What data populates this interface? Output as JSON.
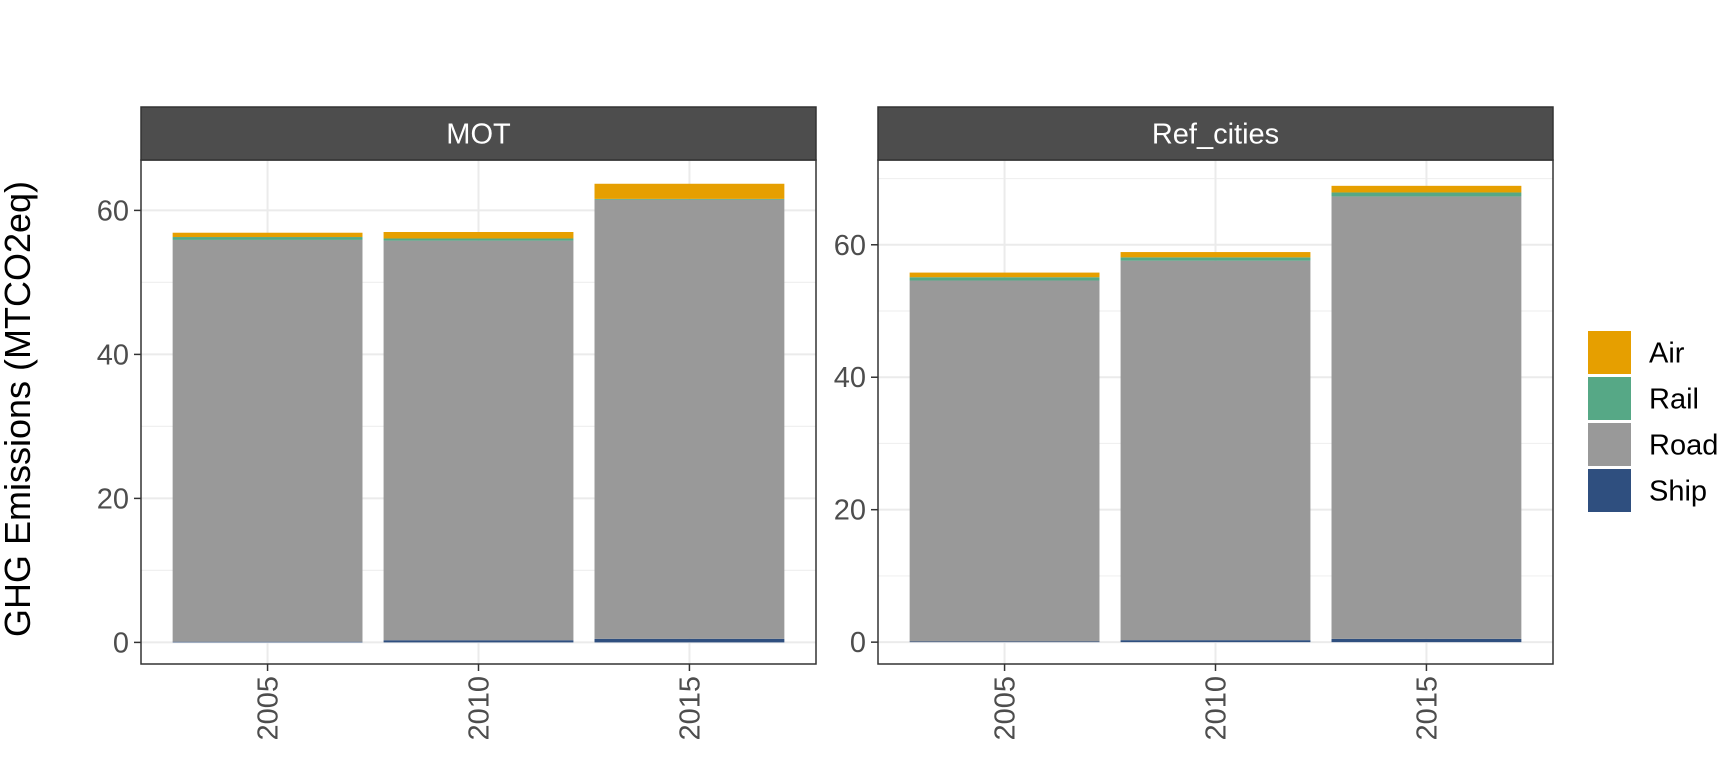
{
  "chart_data": {
    "type": "bar",
    "stacked": true,
    "ylabel": "GHG Emissions (MTCO2eq)",
    "xlabel": "",
    "x_tick_rotation": -90,
    "grid": true,
    "legend": {
      "position": "right",
      "entries": [
        {
          "name": "Air",
          "color": "#E69F00"
        },
        {
          "name": "Rail",
          "color": "#56A886"
        },
        {
          "name": "Road",
          "color": "#999999"
        },
        {
          "name": "Ship",
          "color": "#2F4F7F"
        }
      ]
    },
    "stack_order": [
      "Ship",
      "Road",
      "Rail",
      "Air"
    ],
    "panels": [
      {
        "title": "MOT",
        "categories": [
          "2005",
          "2010",
          "2015"
        ],
        "ylim": [
          -3,
          67
        ],
        "yticks": [
          0,
          20,
          40,
          60
        ],
        "series": [
          {
            "name": "Ship",
            "values": [
              0.1,
              0.3,
              0.5
            ]
          },
          {
            "name": "Road",
            "values": [
              55.8,
              55.5,
              61.0
            ]
          },
          {
            "name": "Rail",
            "values": [
              0.4,
              0.3,
              0.1
            ]
          },
          {
            "name": "Air",
            "values": [
              0.6,
              0.9,
              2.1
            ]
          }
        ]
      },
      {
        "title": "Ref_cities",
        "categories": [
          "2005",
          "2010",
          "2015"
        ],
        "ylim": [
          -3.3,
          72.8
        ],
        "yticks": [
          0,
          20,
          40,
          60
        ],
        "series": [
          {
            "name": "Ship",
            "values": [
              0.1,
              0.3,
              0.5
            ]
          },
          {
            "name": "Road",
            "values": [
              54.5,
              57.3,
              66.8
            ]
          },
          {
            "name": "Rail",
            "values": [
              0.5,
              0.5,
              0.6
            ]
          },
          {
            "name": "Air",
            "values": [
              0.7,
              0.8,
              1.0
            ]
          }
        ]
      }
    ]
  }
}
